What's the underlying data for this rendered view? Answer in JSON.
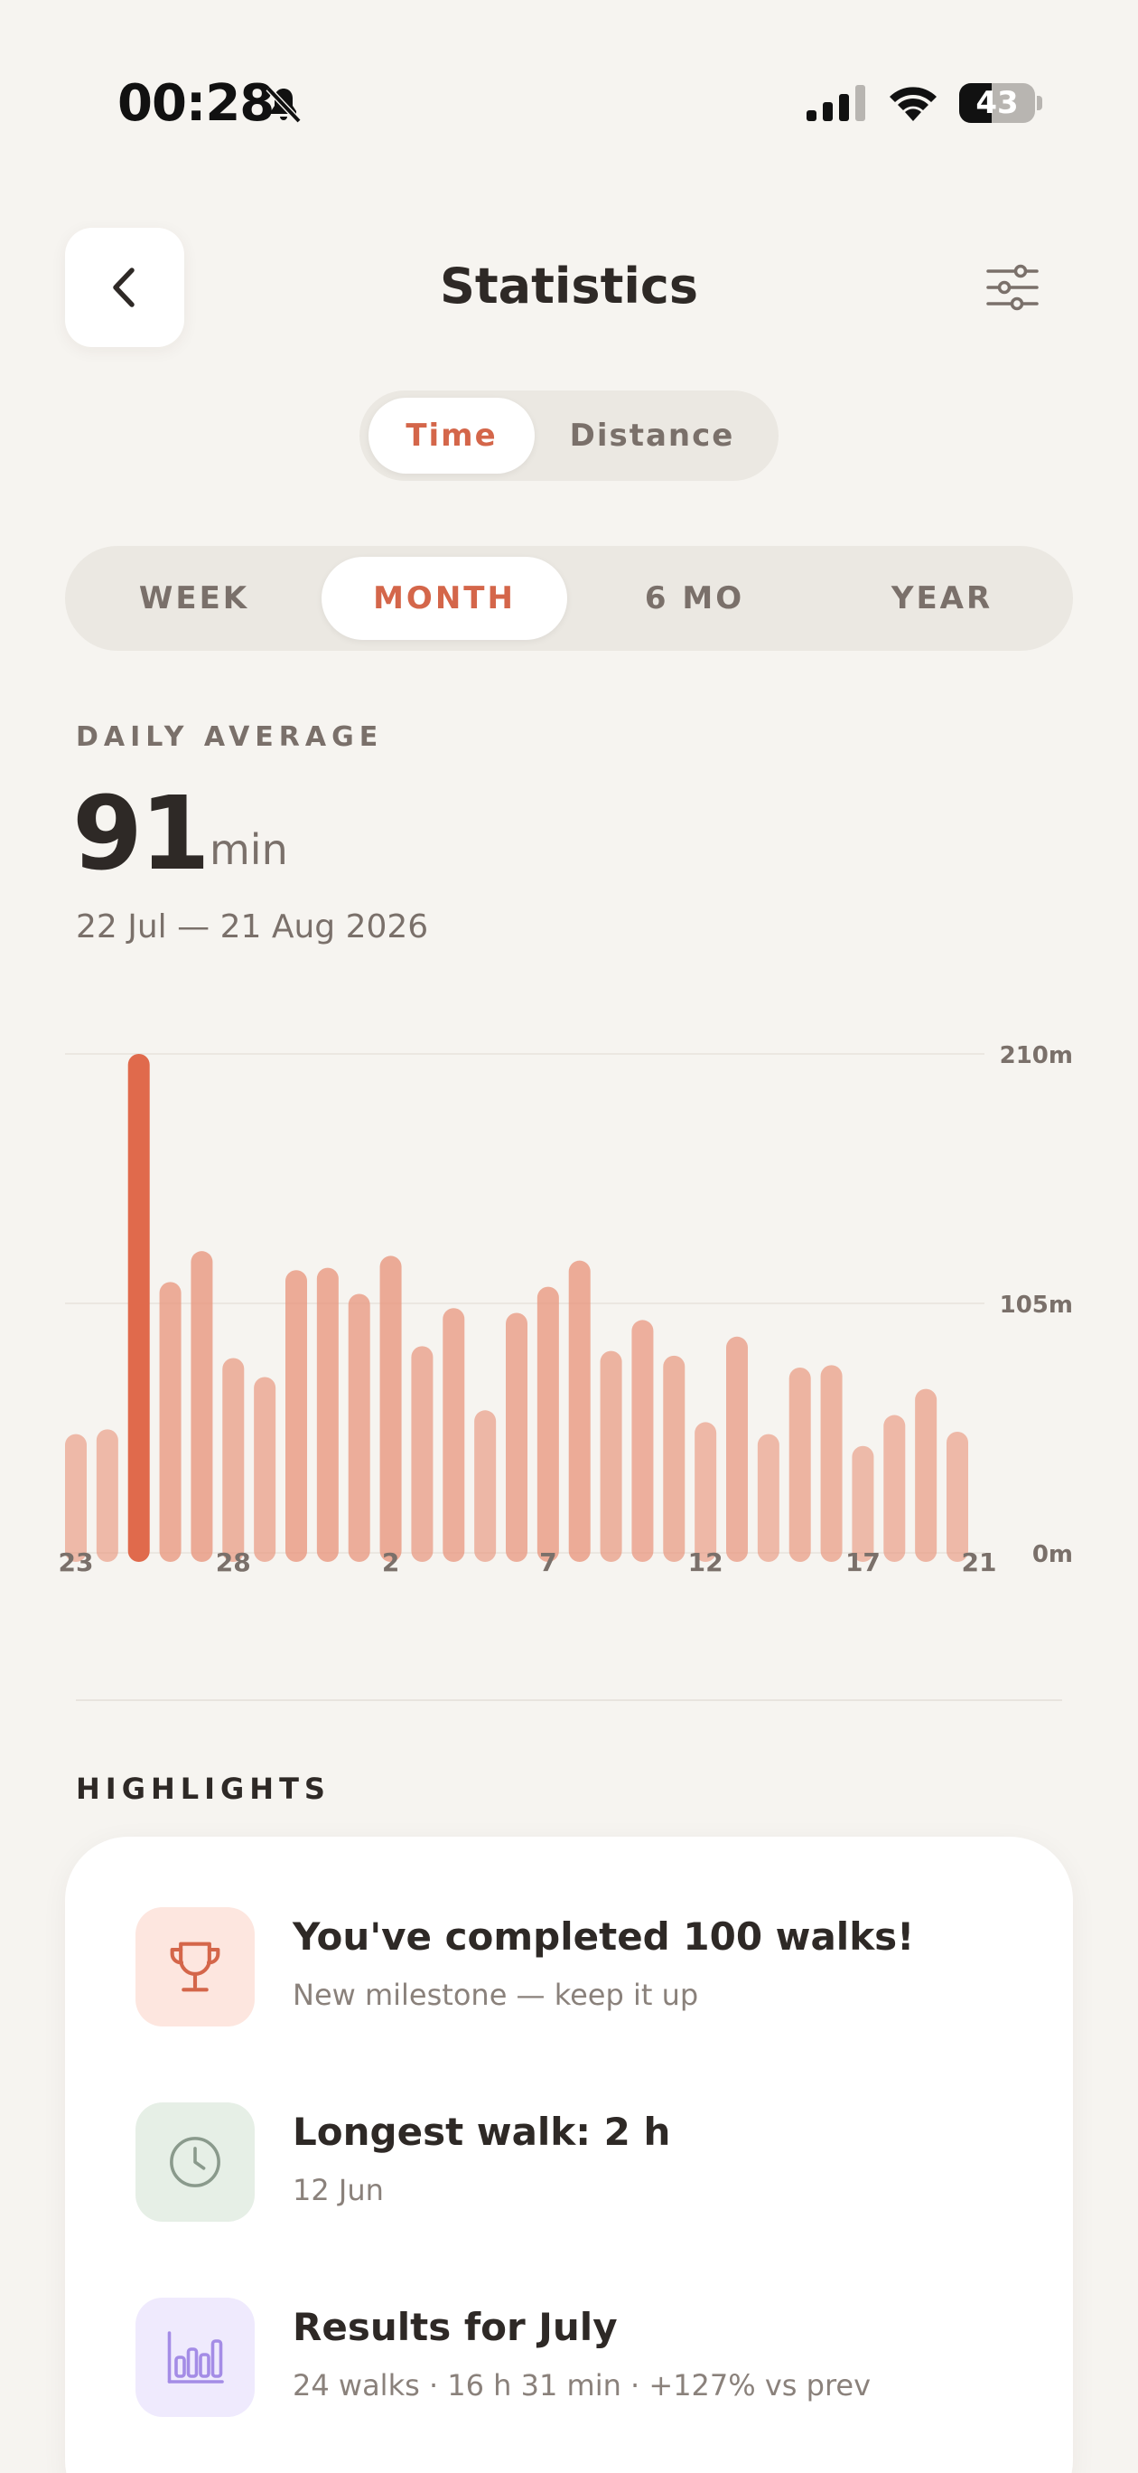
{
  "status_bar": {
    "time": "00:28",
    "battery_level": "43",
    "battery_fraction": 0.43,
    "icons": [
      "bell-slash-icon",
      "cellular-signal-icon",
      "wifi-icon",
      "battery-icon"
    ]
  },
  "header": {
    "title": "Statistics",
    "back_icon": "chevron-left-icon",
    "filter_icon": "sliders-icon"
  },
  "metric_toggle": {
    "options": [
      "Time",
      "Distance"
    ],
    "selected": "Time"
  },
  "period_tabs": {
    "options": [
      "WEEK",
      "MONTH",
      "6 MO",
      "YEAR"
    ],
    "selected": "MONTH"
  },
  "summary": {
    "label": "DAILY AVERAGE",
    "value": "91",
    "unit": "min",
    "date_range": "22 Jul — 21 Aug 2026"
  },
  "chart_data": {
    "type": "bar",
    "unit": "minutes",
    "x_tick_labels": [
      "23",
      "28",
      "2",
      "7",
      "12",
      "17",
      "21"
    ],
    "y_tick_labels": [
      "0m",
      "105m",
      "210m"
    ],
    "ylim": [
      0,
      210
    ],
    "grid": true,
    "highlight_color": "#e06a4c",
    "bar_color": "#e8937a",
    "values": [
      50,
      52,
      210,
      114,
      127,
      82,
      74,
      119,
      120,
      109,
      125,
      87,
      103,
      60,
      101,
      112,
      123,
      85,
      98,
      83,
      55,
      91,
      50,
      78,
      79,
      45,
      58,
      69,
      51
    ]
  },
  "highlights": {
    "label": "HIGHLIGHTS",
    "items": [
      {
        "icon": "trophy-icon",
        "title": "You've completed 100 walks!",
        "subtitle": "New milestone — keep it up",
        "icon_bg": "#fde6df",
        "icon_color": "#d4664a"
      },
      {
        "icon": "clock-icon",
        "title": "Longest walk: 2 h",
        "subtitle": "12 Jun",
        "icon_bg": "#e6efe6",
        "icon_color": "#8a9a8c"
      },
      {
        "icon": "bar-chart-icon",
        "title": "Results for July",
        "subtitle": "24 walks · 16 h 31 min · +127% vs prev",
        "icon_bg": "#efeafd",
        "icon_color": "#a48ce6"
      }
    ]
  }
}
